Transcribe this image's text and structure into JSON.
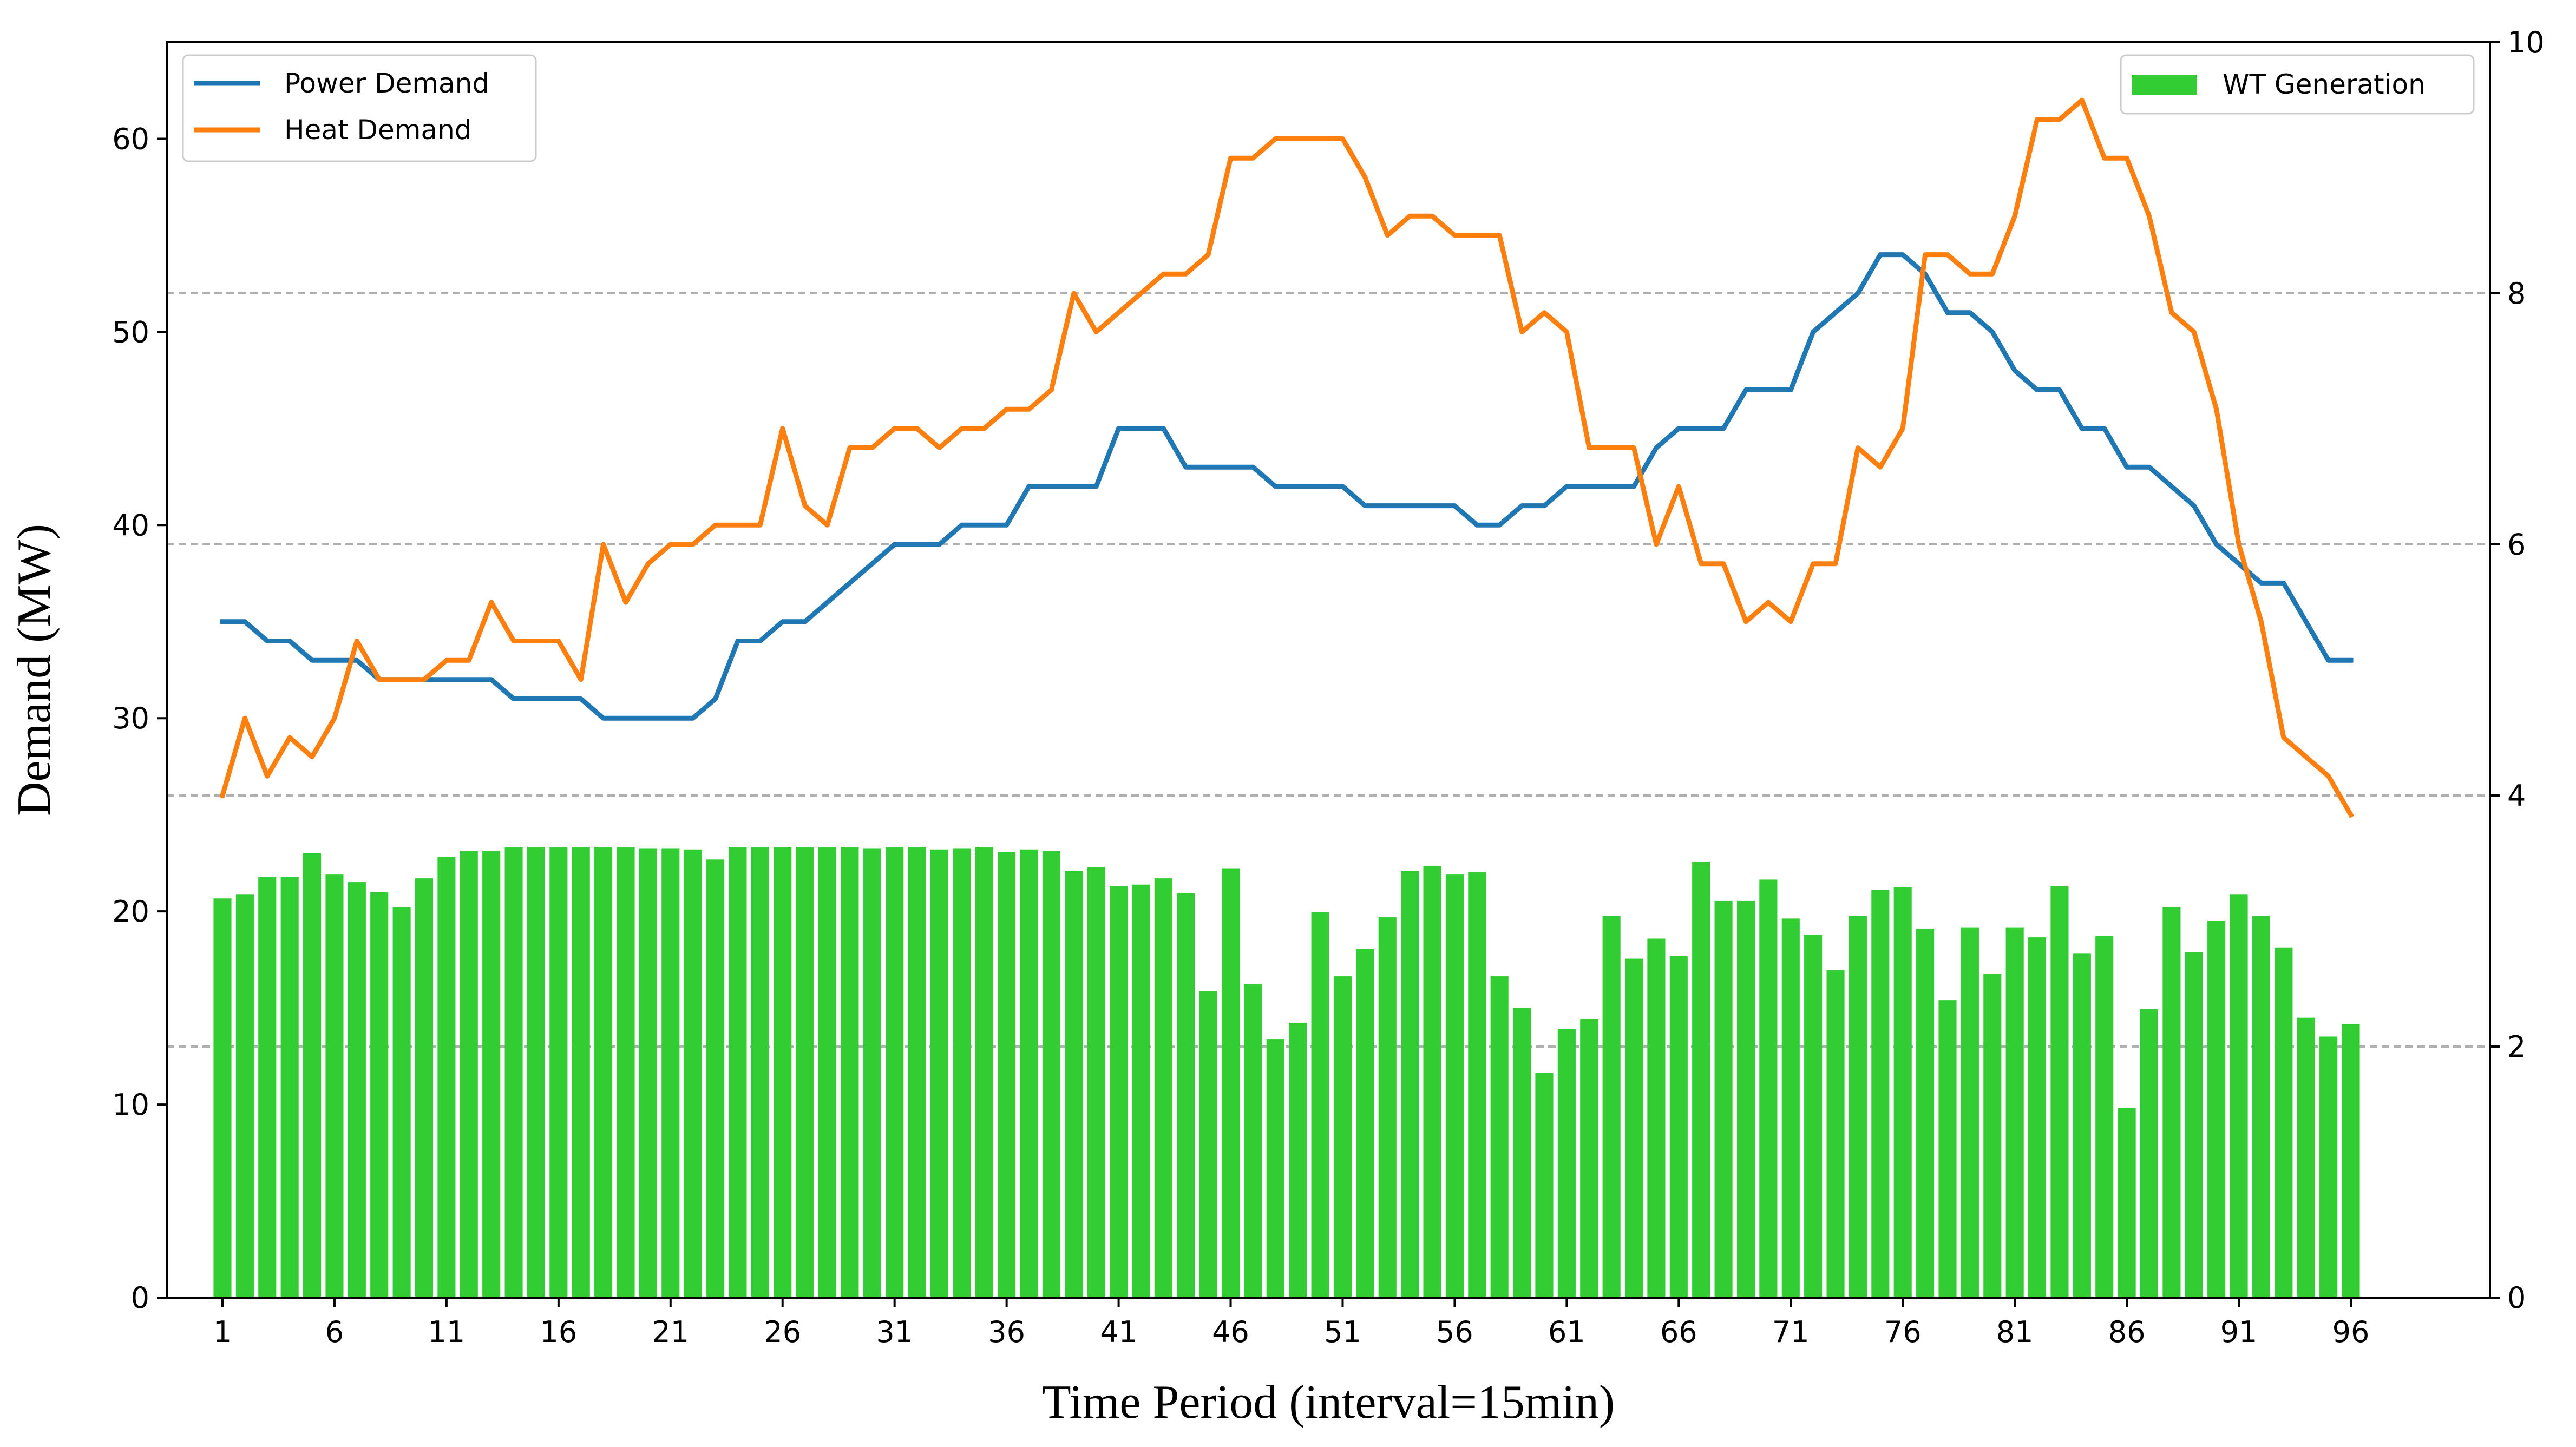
{
  "chart_data": {
    "type": "bar+line",
    "xlabel": "Time Period (interval=15min)",
    "ylabel": "Demand (MW)",
    "y2label": "",
    "x": [
      1,
      2,
      3,
      4,
      5,
      6,
      7,
      8,
      9,
      10,
      11,
      12,
      13,
      14,
      15,
      16,
      17,
      18,
      19,
      20,
      21,
      22,
      23,
      24,
      25,
      26,
      27,
      28,
      29,
      30,
      31,
      32,
      33,
      34,
      35,
      36,
      37,
      38,
      39,
      40,
      41,
      42,
      43,
      44,
      45,
      46,
      47,
      48,
      49,
      50,
      51,
      52,
      53,
      54,
      55,
      56,
      57,
      58,
      59,
      60,
      61,
      62,
      63,
      64,
      65,
      66,
      67,
      68,
      69,
      70,
      71,
      72,
      73,
      74,
      75,
      76,
      77,
      78,
      79,
      80,
      81,
      82,
      83,
      84,
      85,
      86,
      87,
      88,
      89,
      90,
      91,
      92,
      93,
      94,
      95,
      96
    ],
    "x_ticks": [
      "1",
      "6",
      "11",
      "16",
      "21",
      "26",
      "31",
      "36",
      "41",
      "46",
      "51",
      "56",
      "61",
      "66",
      "71",
      "76",
      "81",
      "86",
      "91",
      "96"
    ],
    "ylim": [
      0,
      65
    ],
    "y_ticks": [
      "0",
      "10",
      "20",
      "30",
      "40",
      "50",
      "60"
    ],
    "y2lim": [
      0,
      10
    ],
    "y2_ticks": [
      "0",
      "2",
      "4",
      "6",
      "8",
      "10"
    ],
    "grid": "dashed horizontal lines at right-axis ticks 2, 4, 6, 8",
    "series": [
      {
        "name": "Power Demand",
        "axis": "left",
        "kind": "line",
        "color": "#1f77b4",
        "values": [
          35,
          35,
          34,
          34,
          33,
          33,
          33,
          32,
          32,
          32,
          32,
          32,
          32,
          31,
          31,
          31,
          31,
          30,
          30,
          30,
          30,
          30,
          31,
          34,
          34,
          35,
          35,
          36,
          37,
          38,
          39,
          39,
          39,
          40,
          40,
          40,
          42,
          42,
          42,
          42,
          45,
          45,
          45,
          43,
          43,
          43,
          43,
          42,
          42,
          42,
          42,
          41,
          41,
          41,
          41,
          41,
          40,
          40,
          41,
          41,
          42,
          42,
          42,
          42,
          44,
          45,
          45,
          45,
          47,
          47,
          47,
          50,
          51,
          52,
          54,
          54,
          53,
          51,
          51,
          50,
          48,
          47,
          47,
          45,
          45,
          43,
          43,
          42,
          41,
          39,
          38,
          37,
          37,
          35,
          33,
          33
        ]
      },
      {
        "name": "Heat Demand",
        "axis": "left",
        "kind": "line",
        "color": "#ff7f0e",
        "values": [
          26,
          30,
          27,
          29,
          28,
          30,
          34,
          32,
          32,
          32,
          33,
          33,
          36,
          34,
          34,
          34,
          32,
          39,
          36,
          38,
          39,
          39,
          40,
          40,
          40,
          45,
          41,
          40,
          44,
          44,
          45,
          45,
          44,
          45,
          45,
          46,
          46,
          47,
          52,
          50,
          51,
          52,
          53,
          53,
          54,
          59,
          59,
          60,
          60,
          60,
          60,
          58,
          55,
          56,
          56,
          55,
          55,
          55,
          50,
          51,
          50,
          44,
          44,
          44,
          39,
          42,
          38,
          38,
          35,
          36,
          35,
          38,
          38,
          44,
          43,
          45,
          54,
          54,
          53,
          53,
          56,
          61,
          61,
          62,
          59,
          59,
          56,
          51,
          50,
          46,
          39,
          35,
          29,
          28,
          27,
          25
        ]
      },
      {
        "name": "WT Generation",
        "axis": "right",
        "kind": "bar",
        "color": "#32cd32",
        "values": [
          3.18,
          3.21,
          3.35,
          3.35,
          3.54,
          3.37,
          3.31,
          3.23,
          3.11,
          3.34,
          3.51,
          3.56,
          3.56,
          3.59,
          3.59,
          3.59,
          3.59,
          3.59,
          3.59,
          3.58,
          3.58,
          3.57,
          3.49,
          3.59,
          3.59,
          3.59,
          3.59,
          3.59,
          3.59,
          3.58,
          3.59,
          3.59,
          3.57,
          3.58,
          3.59,
          3.55,
          3.57,
          3.56,
          3.4,
          3.43,
          3.28,
          3.29,
          3.34,
          3.22,
          2.44,
          3.42,
          2.5,
          2.06,
          2.19,
          3.07,
          2.56,
          2.78,
          3.03,
          3.4,
          3.44,
          3.37,
          3.39,
          2.56,
          2.31,
          1.79,
          2.14,
          2.22,
          3.04,
          2.7,
          2.86,
          2.72,
          3.47,
          3.16,
          3.16,
          3.33,
          3.02,
          2.89,
          2.61,
          3.04,
          3.25,
          3.27,
          2.94,
          2.37,
          2.95,
          2.58,
          2.95,
          2.87,
          3.28,
          2.74,
          2.88,
          1.51,
          2.3,
          3.11,
          2.75,
          3.0,
          3.21,
          3.04,
          2.79,
          2.23,
          2.08,
          2.18
        ]
      }
    ],
    "legends": [
      {
        "position": "top-left",
        "entries": [
          "Power Demand",
          "Heat Demand"
        ]
      },
      {
        "position": "top-right",
        "entries": [
          "WT Generation"
        ]
      }
    ]
  }
}
